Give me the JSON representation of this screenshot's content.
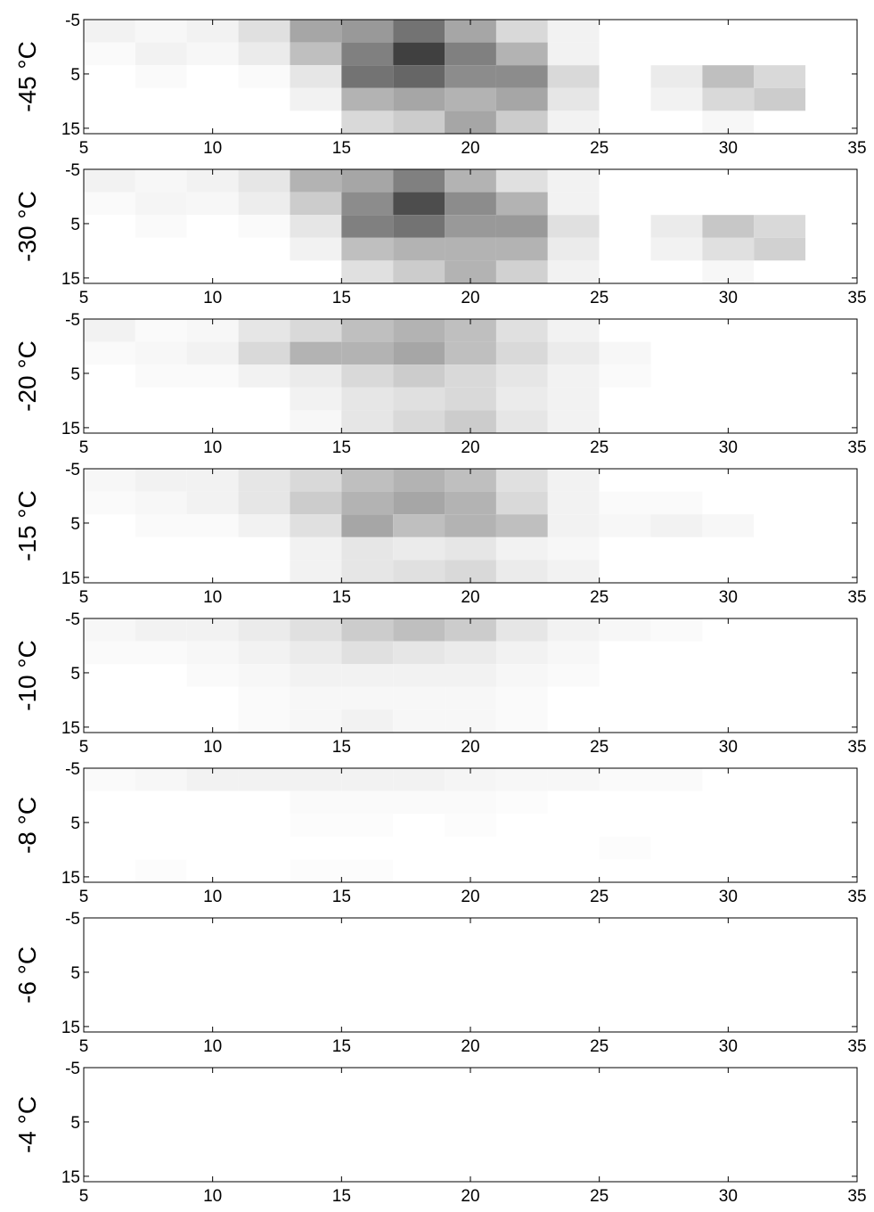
{
  "chart_data": [
    {
      "type": "heatmap",
      "ylabel": "-45 °C",
      "xlim": [
        5,
        35
      ],
      "ylim": [
        -5,
        16
      ],
      "xticks": [
        5,
        10,
        15,
        20,
        25,
        30,
        35
      ],
      "yticks": [
        -5,
        5,
        15
      ],
      "xbins": [
        5,
        7,
        9,
        11,
        13,
        15,
        17,
        19,
        21,
        23,
        25,
        27,
        29,
        31,
        33,
        35
      ],
      "ybins": [
        -5,
        -0.8,
        3.4,
        7.6,
        11.8,
        16
      ],
      "values": [
        [
          0.05,
          0.03,
          0.05,
          0.12,
          0.35,
          0.4,
          0.55,
          0.35,
          0.15,
          0.05,
          0,
          0,
          0,
          0,
          0
        ],
        [
          0.02,
          0.05,
          0.03,
          0.08,
          0.25,
          0.5,
          0.75,
          0.5,
          0.3,
          0.05,
          0,
          0,
          0,
          0,
          0
        ],
        [
          0,
          0.02,
          0,
          0.02,
          0.1,
          0.55,
          0.6,
          0.45,
          0.45,
          0.15,
          0,
          0.08,
          0.25,
          0.15,
          0
        ],
        [
          0,
          0,
          0,
          0,
          0.05,
          0.3,
          0.35,
          0.3,
          0.35,
          0.1,
          0,
          0.05,
          0.15,
          0.2,
          0
        ],
        [
          0,
          0,
          0,
          0,
          0,
          0.15,
          0.2,
          0.35,
          0.2,
          0.05,
          0,
          0,
          0.03,
          0,
          0
        ]
      ]
    },
    {
      "type": "heatmap",
      "ylabel": "-30 °C",
      "xlim": [
        5,
        35
      ],
      "ylim": [
        -5,
        16
      ],
      "xticks": [
        5,
        10,
        15,
        20,
        25,
        30,
        35
      ],
      "yticks": [
        -5,
        5,
        15
      ],
      "xbins": [
        5,
        7,
        9,
        11,
        13,
        15,
        17,
        19,
        21,
        23,
        25,
        27,
        29,
        31,
        33,
        35
      ],
      "ybins": [
        -5,
        -0.8,
        3.4,
        7.6,
        11.8,
        16
      ],
      "values": [
        [
          0.05,
          0.03,
          0.05,
          0.1,
          0.3,
          0.35,
          0.5,
          0.3,
          0.12,
          0.05,
          0,
          0,
          0,
          0,
          0
        ],
        [
          0.02,
          0.04,
          0.03,
          0.07,
          0.2,
          0.45,
          0.7,
          0.45,
          0.3,
          0.05,
          0,
          0,
          0,
          0,
          0
        ],
        [
          0,
          0.02,
          0,
          0.02,
          0.1,
          0.5,
          0.55,
          0.4,
          0.4,
          0.12,
          0,
          0.08,
          0.22,
          0.15,
          0
        ],
        [
          0,
          0,
          0,
          0,
          0.05,
          0.25,
          0.3,
          0.3,
          0.3,
          0.08,
          0,
          0.05,
          0.12,
          0.18,
          0
        ],
        [
          0,
          0,
          0,
          0,
          0,
          0.12,
          0.2,
          0.3,
          0.18,
          0.05,
          0,
          0,
          0.03,
          0,
          0
        ]
      ]
    },
    {
      "type": "heatmap",
      "ylabel": "-20 °C",
      "xlim": [
        5,
        35
      ],
      "ylim": [
        -5,
        16
      ],
      "xticks": [
        5,
        10,
        15,
        20,
        25,
        30,
        35
      ],
      "yticks": [
        -5,
        5,
        15
      ],
      "xbins": [
        5,
        7,
        9,
        11,
        13,
        15,
        17,
        19,
        21,
        23,
        25,
        27,
        29,
        31,
        33,
        35
      ],
      "ybins": [
        -5,
        -0.8,
        3.4,
        7.6,
        11.8,
        16
      ],
      "values": [
        [
          0.05,
          0.02,
          0.03,
          0.1,
          0.15,
          0.25,
          0.3,
          0.25,
          0.12,
          0.05,
          0,
          0,
          0,
          0,
          0
        ],
        [
          0.02,
          0.03,
          0.05,
          0.15,
          0.3,
          0.3,
          0.35,
          0.25,
          0.15,
          0.08,
          0.03,
          0,
          0,
          0,
          0
        ],
        [
          0,
          0.02,
          0.02,
          0.05,
          0.08,
          0.15,
          0.2,
          0.15,
          0.1,
          0.05,
          0.02,
          0,
          0,
          0,
          0
        ],
        [
          0,
          0,
          0,
          0,
          0.05,
          0.1,
          0.12,
          0.15,
          0.08,
          0.05,
          0,
          0,
          0,
          0,
          0
        ],
        [
          0,
          0,
          0,
          0,
          0.03,
          0.1,
          0.15,
          0.2,
          0.1,
          0.05,
          0,
          0,
          0,
          0,
          0
        ]
      ]
    },
    {
      "type": "heatmap",
      "ylabel": "-15 °C",
      "xlim": [
        5,
        35
      ],
      "ylim": [
        -5,
        16
      ],
      "xticks": [
        5,
        10,
        15,
        20,
        25,
        30,
        35
      ],
      "yticks": [
        -5,
        5,
        15
      ],
      "xbins": [
        5,
        7,
        9,
        11,
        13,
        15,
        17,
        19,
        21,
        23,
        25,
        27,
        29,
        31,
        33,
        35
      ],
      "ybins": [
        -5,
        -0.8,
        3.4,
        7.6,
        11.8,
        16
      ],
      "values": [
        [
          0.03,
          0.05,
          0.05,
          0.1,
          0.15,
          0.25,
          0.3,
          0.25,
          0.12,
          0.05,
          0,
          0,
          0,
          0,
          0
        ],
        [
          0.02,
          0.03,
          0.05,
          0.1,
          0.2,
          0.3,
          0.35,
          0.3,
          0.15,
          0.05,
          0.02,
          0.02,
          0,
          0,
          0
        ],
        [
          0,
          0.02,
          0.02,
          0.05,
          0.12,
          0.35,
          0.25,
          0.3,
          0.25,
          0.05,
          0.03,
          0.05,
          0.03,
          0,
          0
        ],
        [
          0,
          0,
          0,
          0,
          0.05,
          0.1,
          0.08,
          0.1,
          0.05,
          0.03,
          0,
          0,
          0,
          0,
          0
        ],
        [
          0,
          0,
          0,
          0,
          0.05,
          0.1,
          0.12,
          0.15,
          0.08,
          0.05,
          0,
          0,
          0,
          0,
          0
        ]
      ]
    },
    {
      "type": "heatmap",
      "ylabel": "-10 °C",
      "xlim": [
        5,
        35
      ],
      "ylim": [
        -5,
        16
      ],
      "xticks": [
        5,
        10,
        15,
        20,
        25,
        30,
        35
      ],
      "yticks": [
        -5,
        5,
        15
      ],
      "xbins": [
        5,
        7,
        9,
        11,
        13,
        15,
        17,
        19,
        21,
        23,
        25,
        27,
        29,
        31,
        33,
        35
      ],
      "ybins": [
        -5,
        -0.8,
        3.4,
        7.6,
        11.8,
        16
      ],
      "values": [
        [
          0.03,
          0.05,
          0.05,
          0.08,
          0.12,
          0.2,
          0.25,
          0.2,
          0.1,
          0.05,
          0.03,
          0.02,
          0,
          0,
          0
        ],
        [
          0.02,
          0.02,
          0.03,
          0.05,
          0.08,
          0.12,
          0.1,
          0.08,
          0.05,
          0.03,
          0,
          0,
          0,
          0,
          0
        ],
        [
          0,
          0,
          0.02,
          0.03,
          0.05,
          0.05,
          0.05,
          0.05,
          0.03,
          0.02,
          0,
          0,
          0,
          0,
          0
        ],
        [
          0,
          0,
          0,
          0.02,
          0.03,
          0.03,
          0.03,
          0.03,
          0.02,
          0,
          0,
          0,
          0,
          0,
          0
        ],
        [
          0,
          0,
          0,
          0.02,
          0.03,
          0.05,
          0.03,
          0.03,
          0.02,
          0,
          0,
          0,
          0,
          0,
          0
        ]
      ]
    },
    {
      "type": "heatmap",
      "ylabel": "-8 °C",
      "xlim": [
        5,
        35
      ],
      "ylim": [
        -5,
        16
      ],
      "xticks": [
        5,
        10,
        15,
        20,
        25,
        30,
        35
      ],
      "yticks": [
        -5,
        5,
        15
      ],
      "xbins": [
        5,
        7,
        9,
        11,
        13,
        15,
        17,
        19,
        21,
        23,
        25,
        27,
        29,
        31,
        33,
        35
      ],
      "ybins": [
        -5,
        -0.8,
        3.4,
        7.6,
        11.8,
        16
      ],
      "values": [
        [
          0.02,
          0.03,
          0.05,
          0.05,
          0.05,
          0.05,
          0.05,
          0.04,
          0.03,
          0.03,
          0.02,
          0.02,
          0,
          0,
          0
        ],
        [
          0,
          0,
          0,
          0,
          0.02,
          0.02,
          0.02,
          0.02,
          0.01,
          0,
          0,
          0,
          0,
          0,
          0
        ],
        [
          0,
          0,
          0,
          0,
          0.01,
          0.01,
          0,
          0.01,
          0,
          0,
          0,
          0,
          0,
          0,
          0
        ],
        [
          0,
          0,
          0,
          0,
          0,
          0,
          0,
          0,
          0,
          0,
          0.01,
          0,
          0,
          0,
          0
        ],
        [
          0,
          0.01,
          0,
          0,
          0.01,
          0.01,
          0,
          0,
          0,
          0,
          0,
          0,
          0,
          0,
          0
        ]
      ]
    },
    {
      "type": "heatmap",
      "ylabel": "-6 °C",
      "xlim": [
        5,
        35
      ],
      "ylim": [
        -5,
        16
      ],
      "xticks": [
        5,
        10,
        15,
        20,
        25,
        30,
        35
      ],
      "yticks": [
        -5,
        5,
        15
      ],
      "xbins": [
        5,
        7,
        9,
        11,
        13,
        15,
        17,
        19,
        21,
        23,
        25,
        27,
        29,
        31,
        33,
        35
      ],
      "ybins": [
        -5,
        -0.8,
        3.4,
        7.6,
        11.8,
        16
      ],
      "values": [
        [
          0,
          0,
          0,
          0,
          0,
          0,
          0,
          0,
          0,
          0,
          0,
          0,
          0,
          0,
          0
        ],
        [
          0,
          0,
          0,
          0,
          0,
          0,
          0,
          0,
          0,
          0,
          0,
          0,
          0,
          0,
          0
        ],
        [
          0,
          0,
          0,
          0,
          0,
          0,
          0,
          0,
          0,
          0,
          0,
          0,
          0,
          0,
          0
        ],
        [
          0,
          0,
          0,
          0,
          0,
          0,
          0,
          0,
          0,
          0,
          0,
          0,
          0,
          0,
          0
        ],
        [
          0,
          0,
          0,
          0,
          0,
          0,
          0,
          0,
          0,
          0,
          0,
          0,
          0,
          0,
          0
        ]
      ]
    },
    {
      "type": "heatmap",
      "ylabel": "-4 °C",
      "xlim": [
        5,
        35
      ],
      "ylim": [
        -5,
        16
      ],
      "xticks": [
        5,
        10,
        15,
        20,
        25,
        30,
        35
      ],
      "yticks": [
        -5,
        5,
        15
      ],
      "xbins": [
        5,
        7,
        9,
        11,
        13,
        15,
        17,
        19,
        21,
        23,
        25,
        27,
        29,
        31,
        33,
        35
      ],
      "ybins": [
        -5,
        -0.8,
        3.4,
        7.6,
        11.8,
        16
      ],
      "values": [
        [
          0,
          0,
          0,
          0,
          0,
          0,
          0,
          0,
          0,
          0,
          0,
          0,
          0,
          0,
          0
        ],
        [
          0,
          0,
          0,
          0,
          0,
          0,
          0,
          0,
          0,
          0,
          0,
          0,
          0,
          0,
          0
        ],
        [
          0,
          0,
          0,
          0,
          0,
          0,
          0,
          0,
          0,
          0,
          0,
          0,
          0,
          0,
          0
        ],
        [
          0,
          0,
          0,
          0,
          0,
          0,
          0,
          0,
          0,
          0,
          0,
          0,
          0,
          0,
          0
        ],
        [
          0,
          0,
          0,
          0,
          0,
          0,
          0,
          0,
          0,
          0,
          0,
          0,
          0,
          0,
          0
        ]
      ]
    }
  ]
}
